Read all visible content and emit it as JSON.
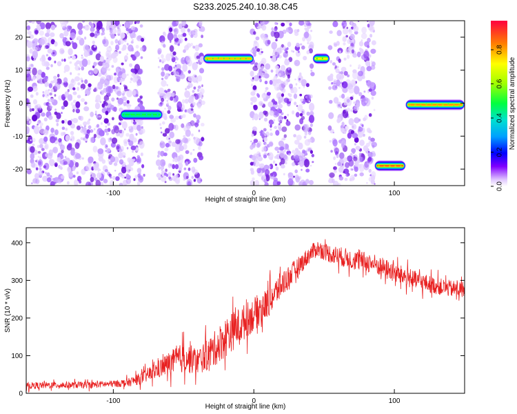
{
  "title": "S233.2025.240.10.38.C45",
  "colors": {
    "frame": "#000000",
    "snr_line": "#e82020",
    "background": "#ffffff",
    "scatter": "#8a2be2"
  },
  "chart_data": [
    {
      "type": "heatmap",
      "name": "spectrogram",
      "xlabel": "Height of straight line (km)",
      "ylabel": "Frequency (Hz)",
      "xlim": [
        -162,
        150
      ],
      "ylim": [
        -25,
        25
      ],
      "xticks": [
        -100,
        0,
        100
      ],
      "yticks": [
        -20,
        -10,
        0,
        10,
        20
      ],
      "colorbar": {
        "label": "Normalized spectral amplitude",
        "range": [
          0,
          0.97
        ],
        "ticks": [
          0,
          0.2,
          0.4,
          0.6,
          0.8
        ]
      },
      "noise_bands_km": [
        [
          -162,
          -78
        ],
        [
          -68,
          -36
        ],
        [
          -2,
          42
        ],
        [
          54,
          86
        ]
      ],
      "signal_segments": [
        {
          "x_start": -95,
          "x_end": -65,
          "freq_hz": -3.5,
          "peak": 0.5
        },
        {
          "x_start": -36,
          "x_end": 0,
          "freq_hz": 13.5,
          "peak": 0.8
        },
        {
          "x_start": 42,
          "x_end": 54,
          "freq_hz": 13.5,
          "peak": 0.75
        },
        {
          "x_start": 86,
          "x_end": 108,
          "freq_hz": -19,
          "peak": 0.9
        },
        {
          "x_start": 108,
          "x_end": 150,
          "freq_hz": -0.5,
          "peak": 0.85
        }
      ]
    },
    {
      "type": "line",
      "name": "snr",
      "xlabel": "Height of straight line (km)",
      "ylabel": "SNR (10 * v/v)",
      "xlim": [
        -162,
        150
      ],
      "ylim": [
        0,
        440
      ],
      "xticks": [
        -100,
        0,
        100
      ],
      "yticks": [
        0,
        100,
        200,
        300,
        400
      ],
      "series": [
        {
          "name": "SNR",
          "x": [
            -162,
            -140,
            -120,
            -100,
            -90,
            -80,
            -70,
            -60,
            -50,
            -40,
            -30,
            -20,
            -10,
            0,
            10,
            20,
            30,
            40,
            45,
            55,
            70,
            85,
            100,
            115,
            130,
            140,
            150
          ],
          "values": [
            20,
            22,
            22,
            25,
            28,
            40,
            60,
            80,
            95,
            85,
            110,
            150,
            180,
            210,
            240,
            290,
            330,
            370,
            385,
            370,
            355,
            345,
            320,
            300,
            285,
            278,
            275
          ],
          "noise": [
            10,
            10,
            10,
            10,
            12,
            18,
            25,
            35,
            45,
            40,
            50,
            60,
            55,
            50,
            45,
            40,
            30,
            25,
            25,
            28,
            30,
            30,
            30,
            28,
            25,
            25,
            25
          ]
        }
      ]
    }
  ]
}
